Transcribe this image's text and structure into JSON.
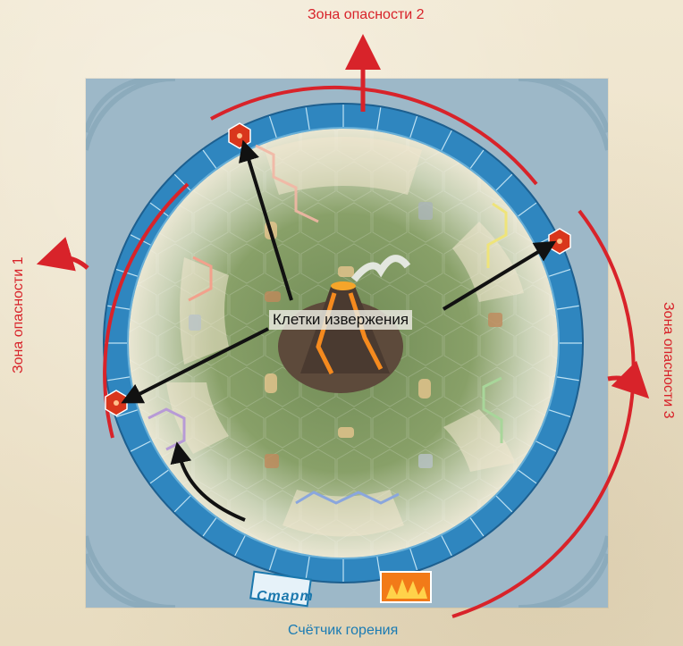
{
  "zones": {
    "zone1": "Зона опасности 1",
    "zone2": "Зона опасности 2",
    "zone3": "Зона опасности 3"
  },
  "center_label": "Клетки извержения",
  "burn_counter_label": "Счётчик горения",
  "start_label": "Старт",
  "colors": {
    "danger_red": "#d8232a",
    "label_blue": "#1a7bb3",
    "ring_blue": "#2f86bf",
    "hex_red": "#d9361c"
  }
}
